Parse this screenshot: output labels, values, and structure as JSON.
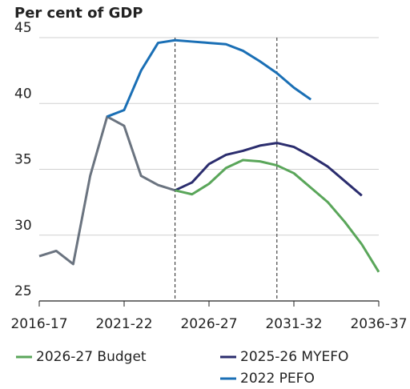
{
  "chart_data": {
    "type": "line",
    "title": "Per cent of GDP",
    "categories": [
      "2016-17",
      null,
      null,
      null,
      null,
      "2021-22",
      null,
      null,
      null,
      null,
      "2026-27",
      null,
      null,
      null,
      null,
      "2031-32",
      null,
      null,
      null,
      null,
      "2036-37"
    ],
    "series": [
      {
        "color": "#6b7480",
        "values": [
          28.4,
          28.8,
          27.8,
          34.5,
          39.0,
          38.3,
          34.5,
          33.8,
          33.4,
          null,
          null,
          null,
          null,
          null,
          null,
          null,
          null,
          null,
          null,
          null,
          null
        ]
      },
      {
        "name": "2022 PEFO",
        "color": "#1a6fb5",
        "values": [
          null,
          null,
          null,
          null,
          39.0,
          39.5,
          42.5,
          44.6,
          44.8,
          44.7,
          44.6,
          44.5,
          44.0,
          43.2,
          42.3,
          41.2,
          40.3,
          null,
          null,
          null,
          null
        ]
      },
      {
        "name": "2025-26 MYEFO",
        "color": "#2b2d6e",
        "values": [
          null,
          null,
          null,
          null,
          null,
          null,
          null,
          null,
          33.4,
          34.0,
          35.4,
          36.1,
          36.4,
          36.8,
          37.0,
          36.7,
          36.0,
          35.2,
          34.1,
          33.0,
          null
        ]
      },
      {
        "name": "2026-27 Budget",
        "color": "#5aa65a",
        "values": [
          null,
          null,
          null,
          null,
          null,
          null,
          null,
          null,
          33.4,
          33.1,
          33.9,
          35.1,
          35.7,
          35.6,
          35.3,
          34.7,
          33.6,
          32.5,
          31.0,
          29.3,
          27.2
        ]
      }
    ],
    "legend_order": [
      3,
      2,
      1
    ],
    "reference_lines": [
      8,
      14
    ],
    "ylim": [
      25,
      45
    ],
    "yticks": [
      25,
      30,
      35,
      40,
      45
    ],
    "grid": true
  }
}
